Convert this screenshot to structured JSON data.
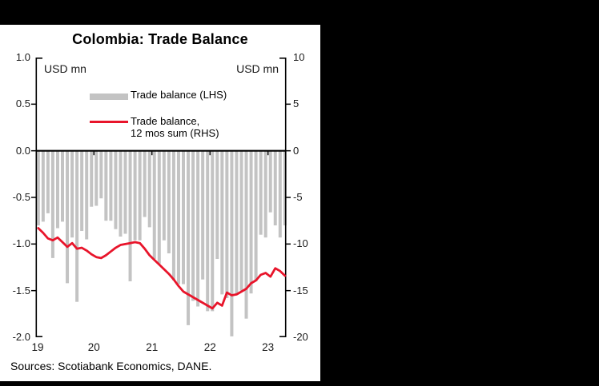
{
  "source_note": "Sources: Scotiabank Economics, DANE.",
  "legend": {
    "bar_label": "Trade balance (LHS)",
    "line_label_line1": "Trade balance,",
    "line_label_line2": "12 mos sum (RHS)"
  },
  "colors": {
    "bar": "#c3c3c3",
    "line": "#e8152b",
    "axis": "#000000",
    "panel_background": "#ffffff",
    "surround_background": "#000000"
  },
  "chart_data": {
    "type": "bar+line",
    "title": "Colombia: Trade Balance",
    "x_start": "2019-01",
    "x_end": "2023-04",
    "frequency": "monthly",
    "x_tick_labels": [
      "19",
      "20",
      "21",
      "22",
      "23"
    ],
    "grid": false,
    "legend_position": "top-left-inside",
    "lhs": {
      "unit_label": "USD mn",
      "range": [
        -2.0,
        1.0
      ],
      "tick_labels": [
        "1.0",
        "0.5",
        "0.0",
        "-0.5",
        "-1.0",
        "-1.5",
        "-2.0"
      ]
    },
    "rhs": {
      "unit_label": "USD mn",
      "range": [
        -20,
        10
      ],
      "tick_labels": [
        "10",
        "5",
        "0",
        "-5",
        "-10",
        "-15",
        "-20"
      ]
    },
    "series": [
      {
        "name": "Trade balance (LHS)",
        "type": "bar",
        "axis": "left",
        "values": [
          -0.8,
          -0.76,
          -0.67,
          -1.15,
          -0.83,
          -0.76,
          -1.42,
          -0.93,
          -1.62,
          -0.86,
          -0.95,
          -0.6,
          -0.59,
          -0.51,
          -0.75,
          -0.75,
          -0.84,
          -0.92,
          -0.89,
          -1.4,
          -0.96,
          -0.96,
          -0.71,
          -0.82,
          -1.16,
          -1.21,
          -0.96,
          -1.1,
          -1.39,
          -1.43,
          -1.43,
          -1.87,
          -1.61,
          -1.67,
          -1.38,
          -1.72,
          -1.72,
          -1.16,
          -1.54,
          -1.58,
          -1.99,
          -1.54,
          -1.5,
          -1.8,
          -1.53,
          -1.4,
          -0.9,
          -0.93,
          -0.66,
          -0.8,
          -0.93,
          -0.8
        ]
      },
      {
        "name": "Trade balance, 12 mos sum (RHS)",
        "type": "line",
        "axis": "right",
        "values": [
          -8.3,
          -8.8,
          -9.4,
          -9.6,
          -9.3,
          -9.8,
          -10.3,
          -9.9,
          -10.5,
          -10.4,
          -10.7,
          -11.1,
          -11.4,
          -11.5,
          -11.2,
          -10.8,
          -10.4,
          -10.1,
          -10.0,
          -9.9,
          -9.8,
          -9.9,
          -10.5,
          -11.2,
          -11.7,
          -12.2,
          -12.7,
          -13.2,
          -13.8,
          -14.5,
          -15.1,
          -15.4,
          -15.7,
          -16.0,
          -16.3,
          -16.6,
          -16.9,
          -16.3,
          -16.6,
          -15.2,
          -15.5,
          -15.4,
          -15.1,
          -14.8,
          -14.2,
          -13.9,
          -13.3,
          -13.1,
          -13.5,
          -12.6,
          -12.9,
          -13.4
        ]
      }
    ]
  }
}
